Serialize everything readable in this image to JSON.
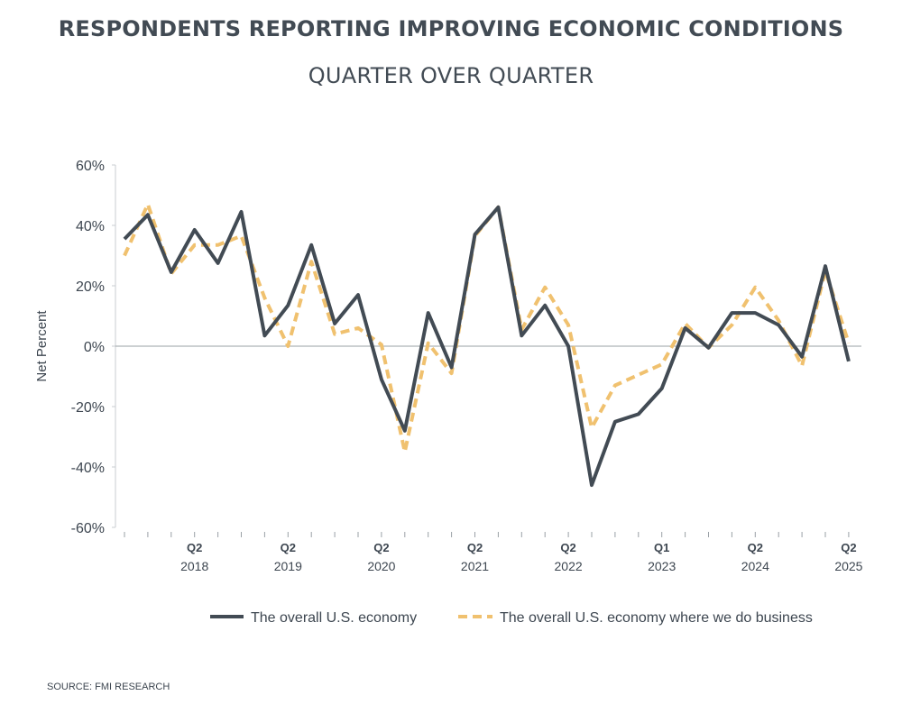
{
  "chart_data": {
    "type": "line",
    "title": "RESPONDENTS REPORTING IMPROVING ECONOMIC CONDITIONS",
    "subtitle": "QUARTER OVER QUARTER",
    "ylabel": "Net Percent",
    "ylim": [
      -60,
      60
    ],
    "yticks": [
      60,
      40,
      20,
      0,
      -20,
      -40,
      -60
    ],
    "ytick_labels": [
      "60%",
      "40%",
      "20%",
      "0%",
      "-20%",
      "-40%",
      "-60%"
    ],
    "x_tick_labels": [
      {
        "index": 3,
        "quarter": "Q2",
        "year": "2018"
      },
      {
        "index": 7,
        "quarter": "Q2",
        "year": "2019"
      },
      {
        "index": 11,
        "quarter": "Q2",
        "year": "2020"
      },
      {
        "index": 15,
        "quarter": "Q2",
        "year": "2021"
      },
      {
        "index": 19,
        "quarter": "Q2",
        "year": "2022"
      },
      {
        "index": 23,
        "quarter": "Q1",
        "year": "2023"
      },
      {
        "index": 27,
        "quarter": "Q2",
        "year": "2024"
      },
      {
        "index": 31,
        "quarter": "Q2",
        "year": "2025"
      }
    ],
    "series": [
      {
        "name": "The overall U.S. economy",
        "color": "#424b54",
        "style": "solid",
        "values": [
          35.5,
          43.5,
          24.5,
          38.5,
          27.5,
          44.5,
          3.5,
          13.5,
          33.5,
          7.5,
          17,
          -11,
          -28,
          11,
          -7,
          37,
          46,
          3.5,
          13.5,
          0,
          -46,
          -25,
          -22.5,
          -14,
          6,
          -0.5,
          11,
          11,
          7,
          -3.5,
          26.5,
          -5
        ]
      },
      {
        "name": "The overall U.S. economy where we do business",
        "color": "#f0c16f",
        "style": "dashed",
        "values": [
          30,
          47,
          24,
          33.5,
          33.5,
          36.5,
          16,
          0,
          28,
          4,
          6,
          0.5,
          -35,
          1,
          -9,
          36.5,
          46,
          5.5,
          19.5,
          7,
          -27,
          -13,
          -9.5,
          -6,
          7.5,
          -0.5,
          7,
          19.5,
          8.5,
          -6.5,
          25,
          1
        ]
      }
    ],
    "source": "SOURCE: FMI RESEARCH"
  }
}
